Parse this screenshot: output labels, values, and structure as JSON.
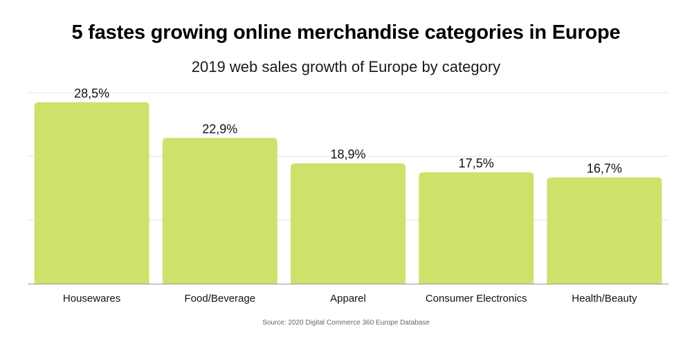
{
  "title": "5 fastes growing online merchandise categories in Europe",
  "subtitle": "2019 web sales growth of Europe by category",
  "source": "Source: 2020  Digital Commerce 360 Europe Database",
  "colors": {
    "bar": "#cce26b",
    "grid": "#e3e3e3",
    "baseline": "#9a9a9a"
  },
  "chart_data": {
    "type": "bar",
    "categories": [
      "Housewares",
      "Food/Beverage",
      "Apparel",
      "Consumer Electronics",
      "Health/Beauty"
    ],
    "values": [
      28.5,
      22.9,
      18.9,
      17.5,
      16.7
    ],
    "value_labels": [
      "28,5%",
      "22,9%",
      "18,9%",
      "17,5%",
      "16,7%"
    ],
    "ylim": [
      0,
      30
    ],
    "grid": true,
    "gridlines": [
      10,
      20,
      30
    ],
    "xlabel": "",
    "ylabel": ""
  }
}
